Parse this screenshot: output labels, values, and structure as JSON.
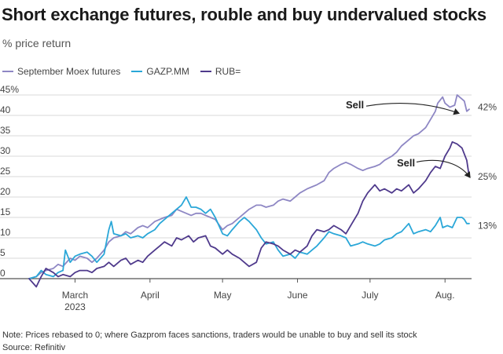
{
  "title": "Short exchange futures, rouble and buy undervalued stocks",
  "subtitle": "% price return",
  "note": "Note: Prices rebased to 0; where Gazprom faces sanctions, traders would be unable to buy and sell its stock",
  "source": "Source: Refinitiv",
  "chart_data": {
    "type": "line",
    "ylim": [
      0,
      45
    ],
    "xlim": [
      "2023-02-24",
      "2023-08-25"
    ],
    "y_ticks": [
      "45%",
      "40",
      "35",
      "30",
      "25",
      "20",
      "15",
      "10",
      "5",
      "0"
    ],
    "x_ticks": [
      {
        "label": "March",
        "sublabel": "2023",
        "date": "2023-03-15"
      },
      {
        "label": "April",
        "sublabel": "",
        "date": "2023-04-15"
      },
      {
        "label": "May",
        "sublabel": "",
        "date": "2023-05-15"
      },
      {
        "label": "June",
        "sublabel": "",
        "date": "2023-06-15"
      },
      {
        "label": "July",
        "sublabel": "",
        "date": "2023-07-15"
      },
      {
        "label": "Aug.",
        "sublabel": "",
        "date": "2023-08-15"
      }
    ],
    "grid": true,
    "legend_position": "top-left",
    "series": [
      {
        "name": "September Moex futures",
        "color": "#8e87c4",
        "end_label": "42%",
        "points": [
          [
            "2023-02-24",
            0
          ],
          [
            "2023-02-27",
            0.5
          ],
          [
            "2023-03-01",
            1.5
          ],
          [
            "2023-03-03",
            2
          ],
          [
            "2023-03-06",
            2.5
          ],
          [
            "2023-03-08",
            3.5
          ],
          [
            "2023-03-10",
            3
          ],
          [
            "2023-03-13",
            5
          ],
          [
            "2023-03-15",
            4.5
          ],
          [
            "2023-03-17",
            5.5
          ],
          [
            "2023-03-20",
            5
          ],
          [
            "2023-03-22",
            4
          ],
          [
            "2023-03-24",
            5
          ],
          [
            "2023-03-27",
            7
          ],
          [
            "2023-03-29",
            9
          ],
          [
            "2023-03-31",
            10
          ],
          [
            "2023-04-03",
            10.5
          ],
          [
            "2023-04-05",
            11.5
          ],
          [
            "2023-04-07",
            11
          ],
          [
            "2023-04-10",
            12.5
          ],
          [
            "2023-04-12",
            13
          ],
          [
            "2023-04-14",
            12.5
          ],
          [
            "2023-04-17",
            14
          ],
          [
            "2023-04-19",
            14.5
          ],
          [
            "2023-04-21",
            15
          ],
          [
            "2023-04-24",
            15.5
          ],
          [
            "2023-04-26",
            17
          ],
          [
            "2023-04-28",
            16.5
          ],
          [
            "2023-05-02",
            15.5
          ],
          [
            "2023-05-04",
            16
          ],
          [
            "2023-05-06",
            16
          ],
          [
            "2023-05-08",
            15.5
          ],
          [
            "2023-05-10",
            15
          ],
          [
            "2023-05-12",
            14.5
          ],
          [
            "2023-05-15",
            12
          ],
          [
            "2023-05-17",
            13
          ],
          [
            "2023-05-19",
            13.5
          ],
          [
            "2023-05-22",
            15
          ],
          [
            "2023-05-24",
            16
          ],
          [
            "2023-05-26",
            17
          ],
          [
            "2023-05-29",
            18
          ],
          [
            "2023-05-31",
            18
          ],
          [
            "2023-06-02",
            17.5
          ],
          [
            "2023-06-05",
            18
          ],
          [
            "2023-06-07",
            19
          ],
          [
            "2023-06-09",
            19.5
          ],
          [
            "2023-06-12",
            19
          ],
          [
            "2023-06-14",
            20
          ],
          [
            "2023-06-16",
            21
          ],
          [
            "2023-06-19",
            22
          ],
          [
            "2023-06-21",
            22.5
          ],
          [
            "2023-06-23",
            23
          ],
          [
            "2023-06-26",
            24
          ],
          [
            "2023-06-28",
            26
          ],
          [
            "2023-06-30",
            27
          ],
          [
            "2023-07-03",
            28
          ],
          [
            "2023-07-05",
            28.5
          ],
          [
            "2023-07-07",
            28
          ],
          [
            "2023-07-10",
            27
          ],
          [
            "2023-07-12",
            26.5
          ],
          [
            "2023-07-14",
            27
          ],
          [
            "2023-07-17",
            27.5
          ],
          [
            "2023-07-19",
            28
          ],
          [
            "2023-07-21",
            29
          ],
          [
            "2023-07-24",
            30
          ],
          [
            "2023-07-26",
            31
          ],
          [
            "2023-07-28",
            32.5
          ],
          [
            "2023-07-31",
            34
          ],
          [
            "2023-08-02",
            35
          ],
          [
            "2023-08-04",
            35.5
          ],
          [
            "2023-08-07",
            37
          ],
          [
            "2023-08-09",
            39
          ],
          [
            "2023-08-11",
            41
          ],
          [
            "2023-08-12",
            43
          ],
          [
            "2023-08-14",
            44.5
          ],
          [
            "2023-08-15",
            43
          ],
          [
            "2023-08-17",
            42
          ],
          [
            "2023-08-19",
            42.5
          ],
          [
            "2023-08-20",
            45
          ],
          [
            "2023-08-22",
            44
          ],
          [
            "2023-08-23",
            43.5
          ],
          [
            "2023-08-24",
            41
          ],
          [
            "2023-08-25",
            41.5
          ]
        ]
      },
      {
        "name": "GAZP.MM",
        "color": "#2aa7d8",
        "end_label": "13%",
        "points": [
          [
            "2023-02-24",
            0
          ],
          [
            "2023-02-27",
            0.5
          ],
          [
            "2023-03-01",
            2
          ],
          [
            "2023-03-03",
            1
          ],
          [
            "2023-03-06",
            0.5
          ],
          [
            "2023-03-08",
            1.5
          ],
          [
            "2023-03-10",
            2
          ],
          [
            "2023-03-11",
            7
          ],
          [
            "2023-03-13",
            4
          ],
          [
            "2023-03-15",
            5.5
          ],
          [
            "2023-03-17",
            6
          ],
          [
            "2023-03-20",
            6.5
          ],
          [
            "2023-03-22",
            5.5
          ],
          [
            "2023-03-24",
            4
          ],
          [
            "2023-03-27",
            6
          ],
          [
            "2023-03-29",
            12
          ],
          [
            "2023-03-30",
            14
          ],
          [
            "2023-03-31",
            11
          ],
          [
            "2023-04-03",
            10.5
          ],
          [
            "2023-04-05",
            11
          ],
          [
            "2023-04-07",
            10
          ],
          [
            "2023-04-10",
            10.5
          ],
          [
            "2023-04-12",
            10
          ],
          [
            "2023-04-14",
            11
          ],
          [
            "2023-04-17",
            12
          ],
          [
            "2023-04-19",
            13.5
          ],
          [
            "2023-04-21",
            14.5
          ],
          [
            "2023-04-24",
            16
          ],
          [
            "2023-04-26",
            17
          ],
          [
            "2023-04-28",
            18
          ],
          [
            "2023-04-30",
            20
          ],
          [
            "2023-05-02",
            17.5
          ],
          [
            "2023-05-04",
            17.5
          ],
          [
            "2023-05-06",
            17
          ],
          [
            "2023-05-08",
            16
          ],
          [
            "2023-05-10",
            17
          ],
          [
            "2023-05-12",
            15
          ],
          [
            "2023-05-15",
            11
          ],
          [
            "2023-05-17",
            10.5
          ],
          [
            "2023-05-19",
            12
          ],
          [
            "2023-05-22",
            14
          ],
          [
            "2023-05-24",
            15
          ],
          [
            "2023-05-26",
            14
          ],
          [
            "2023-05-29",
            12
          ],
          [
            "2023-05-31",
            10
          ],
          [
            "2023-06-02",
            8.5
          ],
          [
            "2023-06-05",
            9
          ],
          [
            "2023-06-07",
            7
          ],
          [
            "2023-06-09",
            5.5
          ],
          [
            "2023-06-12",
            6
          ],
          [
            "2023-06-14",
            5
          ],
          [
            "2023-06-16",
            6.5
          ],
          [
            "2023-06-19",
            6
          ],
          [
            "2023-06-21",
            7
          ],
          [
            "2023-06-23",
            8
          ],
          [
            "2023-06-26",
            10
          ],
          [
            "2023-06-28",
            11.5
          ],
          [
            "2023-06-30",
            11
          ],
          [
            "2023-07-03",
            10.5
          ],
          [
            "2023-07-05",
            10
          ],
          [
            "2023-07-07",
            8
          ],
          [
            "2023-07-10",
            8.5
          ],
          [
            "2023-07-12",
            9
          ],
          [
            "2023-07-14",
            8.5
          ],
          [
            "2023-07-17",
            8
          ],
          [
            "2023-07-19",
            8.5
          ],
          [
            "2023-07-21",
            9.5
          ],
          [
            "2023-07-24",
            10
          ],
          [
            "2023-07-26",
            11
          ],
          [
            "2023-07-28",
            11.5
          ],
          [
            "2023-07-31",
            13.5
          ],
          [
            "2023-08-02",
            11
          ],
          [
            "2023-08-04",
            11.5
          ],
          [
            "2023-08-07",
            12
          ],
          [
            "2023-08-09",
            11.5
          ],
          [
            "2023-08-11",
            13
          ],
          [
            "2023-08-13",
            15
          ],
          [
            "2023-08-14",
            12.5
          ],
          [
            "2023-08-16",
            13
          ],
          [
            "2023-08-18",
            12.5
          ],
          [
            "2023-08-20",
            15
          ],
          [
            "2023-08-22",
            15
          ],
          [
            "2023-08-23",
            14.5
          ],
          [
            "2023-08-24",
            13.5
          ],
          [
            "2023-08-25",
            13.5
          ]
        ]
      },
      {
        "name": "RUB=",
        "color": "#4f3a8c",
        "end_label": "25%",
        "points": [
          [
            "2023-02-24",
            0
          ],
          [
            "2023-02-27",
            -2
          ],
          [
            "2023-03-01",
            0.5
          ],
          [
            "2023-03-03",
            2.5
          ],
          [
            "2023-03-06",
            1.5
          ],
          [
            "2023-03-08",
            0.5
          ],
          [
            "2023-03-10",
            1
          ],
          [
            "2023-03-13",
            0.5
          ],
          [
            "2023-03-15",
            1.5
          ],
          [
            "2023-03-17",
            2
          ],
          [
            "2023-03-20",
            2
          ],
          [
            "2023-03-22",
            1.5
          ],
          [
            "2023-03-24",
            2.5
          ],
          [
            "2023-03-27",
            3
          ],
          [
            "2023-03-29",
            4
          ],
          [
            "2023-03-31",
            3
          ],
          [
            "2023-04-03",
            4.5
          ],
          [
            "2023-04-05",
            5
          ],
          [
            "2023-04-07",
            3.5
          ],
          [
            "2023-04-10",
            4.5
          ],
          [
            "2023-04-12",
            4
          ],
          [
            "2023-04-14",
            5.5
          ],
          [
            "2023-04-17",
            7
          ],
          [
            "2023-04-19",
            8
          ],
          [
            "2023-04-21",
            9
          ],
          [
            "2023-04-24",
            8
          ],
          [
            "2023-04-26",
            10
          ],
          [
            "2023-04-28",
            9.5
          ],
          [
            "2023-05-01",
            10.5
          ],
          [
            "2023-05-03",
            9
          ],
          [
            "2023-05-05",
            10
          ],
          [
            "2023-05-08",
            10.5
          ],
          [
            "2023-05-10",
            8
          ],
          [
            "2023-05-12",
            7.5
          ],
          [
            "2023-05-15",
            6
          ],
          [
            "2023-05-17",
            7
          ],
          [
            "2023-05-19",
            6
          ],
          [
            "2023-05-22",
            5
          ],
          [
            "2023-05-24",
            4
          ],
          [
            "2023-05-26",
            3
          ],
          [
            "2023-05-29",
            4
          ],
          [
            "2023-05-31",
            7.5
          ],
          [
            "2023-06-02",
            9
          ],
          [
            "2023-06-05",
            8.5
          ],
          [
            "2023-06-07",
            8
          ],
          [
            "2023-06-09",
            7
          ],
          [
            "2023-06-12",
            6
          ],
          [
            "2023-06-14",
            7
          ],
          [
            "2023-06-16",
            6.5
          ],
          [
            "2023-06-19",
            8
          ],
          [
            "2023-06-21",
            10.5
          ],
          [
            "2023-06-23",
            12
          ],
          [
            "2023-06-26",
            11.5
          ],
          [
            "2023-06-28",
            12
          ],
          [
            "2023-06-30",
            13
          ],
          [
            "2023-07-03",
            12
          ],
          [
            "2023-07-05",
            11
          ],
          [
            "2023-07-07",
            13
          ],
          [
            "2023-07-10",
            16
          ],
          [
            "2023-07-12",
            19
          ],
          [
            "2023-07-14",
            21
          ],
          [
            "2023-07-17",
            23
          ],
          [
            "2023-07-19",
            21.5
          ],
          [
            "2023-07-21",
            22
          ],
          [
            "2023-07-24",
            21
          ],
          [
            "2023-07-26",
            22
          ],
          [
            "2023-07-28",
            21.5
          ],
          [
            "2023-07-31",
            23
          ],
          [
            "2023-08-02",
            21
          ],
          [
            "2023-08-04",
            22
          ],
          [
            "2023-08-07",
            24
          ],
          [
            "2023-08-09",
            26
          ],
          [
            "2023-08-11",
            27.5
          ],
          [
            "2023-08-13",
            27
          ],
          [
            "2023-08-15",
            30
          ],
          [
            "2023-08-17",
            32
          ],
          [
            "2023-08-18",
            33.5
          ],
          [
            "2023-08-20",
            33
          ],
          [
            "2023-08-22",
            32
          ],
          [
            "2023-08-24",
            29
          ],
          [
            "2023-08-25",
            25
          ]
        ]
      }
    ],
    "annotations": [
      {
        "text": "Sell",
        "series_index": 0
      },
      {
        "text": "Sell",
        "series_index": 2
      }
    ]
  }
}
